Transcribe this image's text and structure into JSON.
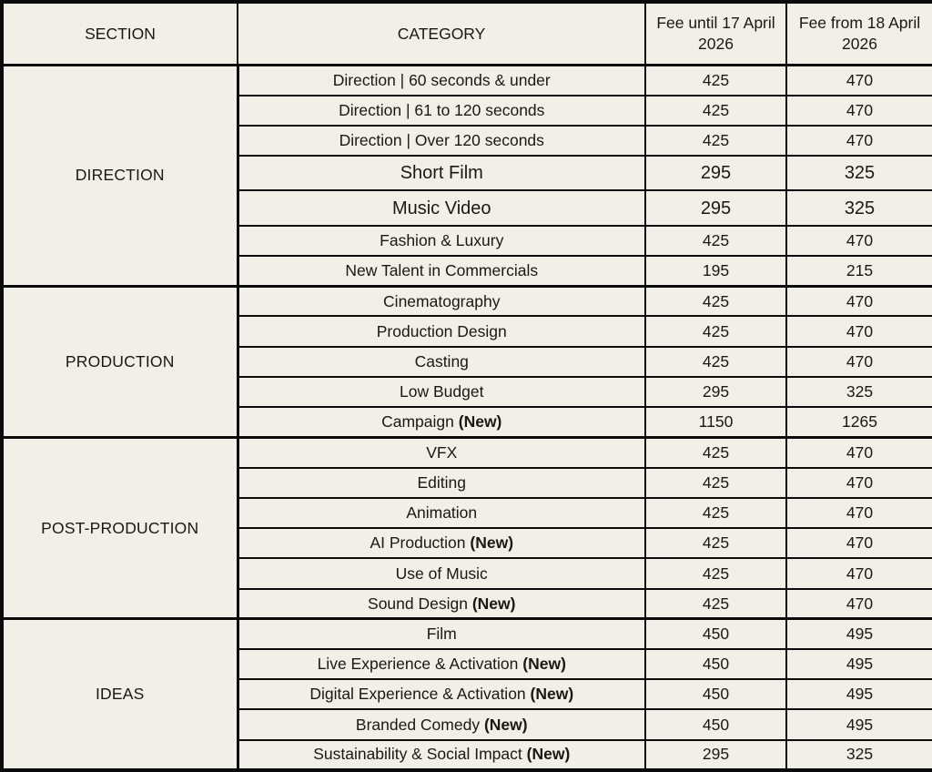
{
  "colors": {
    "background": "#f2efe9",
    "border": "#0b0b0b",
    "text": "#1b1712"
  },
  "table": {
    "new_badge": "(New)",
    "columns": [
      {
        "label": "SECTION"
      },
      {
        "label": "CATEGORY"
      },
      {
        "label": "Fee until 17 April 2026"
      },
      {
        "label": "Fee from 18 April 2026"
      }
    ],
    "sections": [
      {
        "name": "DIRECTION",
        "rows": [
          {
            "category": "Direction | 60 seconds & under",
            "new": false,
            "large": false,
            "fee_until": "425",
            "fee_from": "470"
          },
          {
            "category": "Direction | 61 to 120 seconds",
            "new": false,
            "large": false,
            "fee_until": "425",
            "fee_from": "470"
          },
          {
            "category": "Direction | Over 120 seconds",
            "new": false,
            "large": false,
            "fee_until": "425",
            "fee_from": "470"
          },
          {
            "category": "Short Film",
            "new": false,
            "large": true,
            "fee_until": "295",
            "fee_from": "325"
          },
          {
            "category": "Music Video",
            "new": false,
            "large": true,
            "fee_until": "295",
            "fee_from": "325"
          },
          {
            "category": "Fashion & Luxury",
            "new": false,
            "large": false,
            "fee_until": "425",
            "fee_from": "470"
          },
          {
            "category": "New Talent in Commercials",
            "new": false,
            "large": false,
            "fee_until": "195",
            "fee_from": "215"
          }
        ]
      },
      {
        "name": "PRODUCTION",
        "rows": [
          {
            "category": "Cinematography",
            "new": false,
            "large": false,
            "fee_until": "425",
            "fee_from": "470"
          },
          {
            "category": "Production Design",
            "new": false,
            "large": false,
            "fee_until": "425",
            "fee_from": "470"
          },
          {
            "category": "Casting",
            "new": false,
            "large": false,
            "fee_until": "425",
            "fee_from": "470"
          },
          {
            "category": "Low Budget",
            "new": false,
            "large": false,
            "fee_until": "295",
            "fee_from": "325"
          },
          {
            "category": "Campaign",
            "new": true,
            "large": false,
            "fee_until": "1150",
            "fee_from": "1265"
          }
        ]
      },
      {
        "name": "POST-PRODUCTION",
        "rows": [
          {
            "category": "VFX",
            "new": false,
            "large": false,
            "fee_until": "425",
            "fee_from": "470"
          },
          {
            "category": "Editing",
            "new": false,
            "large": false,
            "fee_until": "425",
            "fee_from": "470"
          },
          {
            "category": "Animation",
            "new": false,
            "large": false,
            "fee_until": "425",
            "fee_from": "470"
          },
          {
            "category": "AI Production",
            "new": true,
            "large": false,
            "fee_until": "425",
            "fee_from": "470"
          },
          {
            "category": "Use of Music",
            "new": false,
            "large": false,
            "fee_until": "425",
            "fee_from": "470"
          },
          {
            "category": "Sound Design",
            "new": true,
            "large": false,
            "fee_until": "425",
            "fee_from": "470"
          }
        ]
      },
      {
        "name": "IDEAS",
        "rows": [
          {
            "category": "Film",
            "new": false,
            "large": false,
            "fee_until": "450",
            "fee_from": "495"
          },
          {
            "category": "Live Experience & Activation",
            "new": true,
            "large": false,
            "fee_until": "450",
            "fee_from": "495"
          },
          {
            "category": "Digital Experience & Activation",
            "new": true,
            "large": false,
            "fee_until": "450",
            "fee_from": "495"
          },
          {
            "category": "Branded Comedy",
            "new": true,
            "large": false,
            "fee_until": "450",
            "fee_from": "495"
          },
          {
            "category": "Sustainability & Social Impact",
            "new": true,
            "large": false,
            "fee_until": "295",
            "fee_from": "325"
          }
        ]
      }
    ]
  },
  "chart_data": {
    "type": "table",
    "title": "",
    "columns": [
      "SECTION",
      "CATEGORY",
      "Fee until 17 April 2026",
      "Fee from 18 April 2026"
    ],
    "rows": [
      [
        "DIRECTION",
        "Direction | 60 seconds & under",
        425,
        470
      ],
      [
        "DIRECTION",
        "Direction | 61 to 120 seconds",
        425,
        470
      ],
      [
        "DIRECTION",
        "Direction | Over 120 seconds",
        425,
        470
      ],
      [
        "DIRECTION",
        "Short Film",
        295,
        325
      ],
      [
        "DIRECTION",
        "Music Video",
        295,
        325
      ],
      [
        "DIRECTION",
        "Fashion & Luxury",
        425,
        470
      ],
      [
        "DIRECTION",
        "New Talent in Commercials",
        195,
        215
      ],
      [
        "PRODUCTION",
        "Cinematography",
        425,
        470
      ],
      [
        "PRODUCTION",
        "Production Design",
        425,
        470
      ],
      [
        "PRODUCTION",
        "Casting",
        425,
        470
      ],
      [
        "PRODUCTION",
        "Low Budget",
        295,
        325
      ],
      [
        "PRODUCTION",
        "Campaign (New)",
        1150,
        1265
      ],
      [
        "POST-PRODUCTION",
        "VFX",
        425,
        470
      ],
      [
        "POST-PRODUCTION",
        "Editing",
        425,
        470
      ],
      [
        "POST-PRODUCTION",
        "Animation",
        425,
        470
      ],
      [
        "POST-PRODUCTION",
        "AI Production (New)",
        425,
        470
      ],
      [
        "POST-PRODUCTION",
        "Use of Music",
        425,
        470
      ],
      [
        "POST-PRODUCTION",
        "Sound Design (New)",
        425,
        470
      ],
      [
        "IDEAS",
        "Film",
        450,
        495
      ],
      [
        "IDEAS",
        "Live Experience & Activation (New)",
        450,
        495
      ],
      [
        "IDEAS",
        "Digital Experience & Activation (New)",
        450,
        495
      ],
      [
        "IDEAS",
        "Branded Comedy (New)",
        450,
        495
      ],
      [
        "IDEAS",
        "Sustainability & Social Impact (New)",
        295,
        325
      ]
    ]
  }
}
